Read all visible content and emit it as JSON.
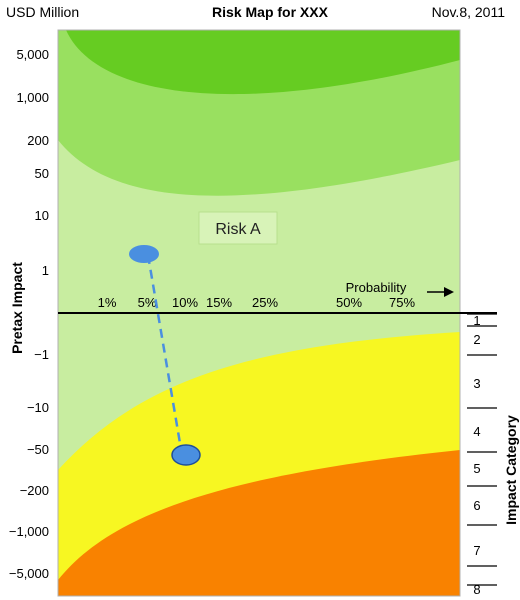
{
  "header": {
    "units": "USD Million",
    "title": "Risk Map for XXX",
    "date": "Nov.8, 2011"
  },
  "chart_data": {
    "type": "area",
    "title": "Risk Map for XXX",
    "ylabel": "Pretax Impact",
    "y_units": "USD Million",
    "right_axis_label": "Impact Category",
    "probability_label": "Probability",
    "y_ticks": [
      "5,000",
      "1,000",
      "200",
      "50",
      "10",
      "1",
      "−1",
      "−10",
      "−50",
      "−200",
      "−1,000",
      "−5,000"
    ],
    "x_ticks": [
      "1%",
      "5%",
      "10%",
      "15%",
      "25%",
      "50%",
      "75%"
    ],
    "impact_categories": [
      "1",
      "2",
      "3",
      "4",
      "5",
      "6",
      "7",
      "8"
    ],
    "zone_colors": {
      "upper_dark_green": "#66cc22",
      "upper_mid_green": "#99e060",
      "light_green": "#c8eda0",
      "yellow": "#f7f722",
      "orange": "#f98200"
    },
    "annotations": [
      {
        "label": "Risk A",
        "type": "box"
      }
    ],
    "risk_points": [
      {
        "name": "Risk A upside",
        "probability": "5%",
        "impact": 2,
        "color": "#4a8fe0"
      },
      {
        "name": "Risk A downside",
        "probability": "10%",
        "impact": -200,
        "color": "#4a8fe0"
      }
    ],
    "connector": {
      "style": "dashed",
      "color": "#4a8fe0"
    },
    "grid": false
  }
}
